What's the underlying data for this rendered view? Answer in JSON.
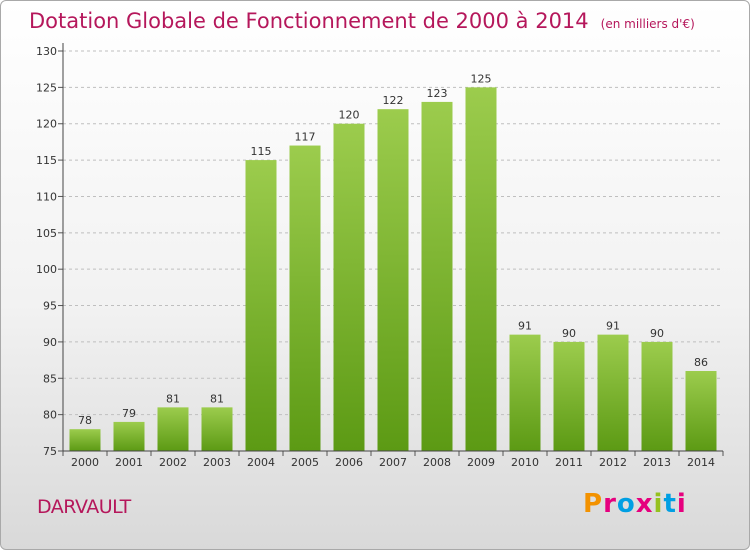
{
  "header": {
    "title": "Dotation Globale de Fonctionnement de 2000 à 2014",
    "subtitle": "(en milliers d'€)"
  },
  "footer": {
    "entity": "DARVAULT",
    "brand": "Proxiti",
    "brand_colors": [
      "#f39200",
      "#e6007e",
      "#009fe3",
      "#e6007e",
      "#95c11f",
      "#009fe3",
      "#e6007e"
    ]
  },
  "chart_data": {
    "type": "bar",
    "title": "Dotation Globale de Fonctionnement de 2000 à 2014",
    "subtitle": "(en milliers d'€)",
    "xlabel": "",
    "ylabel": "",
    "categories": [
      "2000",
      "2001",
      "2002",
      "2003",
      "2004",
      "2005",
      "2006",
      "2007",
      "2008",
      "2009",
      "2010",
      "2011",
      "2012",
      "2013",
      "2014"
    ],
    "values": [
      78,
      79,
      81,
      81,
      115,
      117,
      120,
      122,
      123,
      125,
      91,
      90,
      91,
      90,
      86
    ],
    "ylim": [
      75,
      130
    ],
    "yticks": [
      75,
      80,
      85,
      90,
      95,
      100,
      105,
      110,
      115,
      120,
      125,
      130
    ],
    "grid": true,
    "legend": "none",
    "colors": {
      "bar_top": "#9ccc4d",
      "bar_bottom": "#5c9a14",
      "grid": "#bfbfbf"
    }
  }
}
